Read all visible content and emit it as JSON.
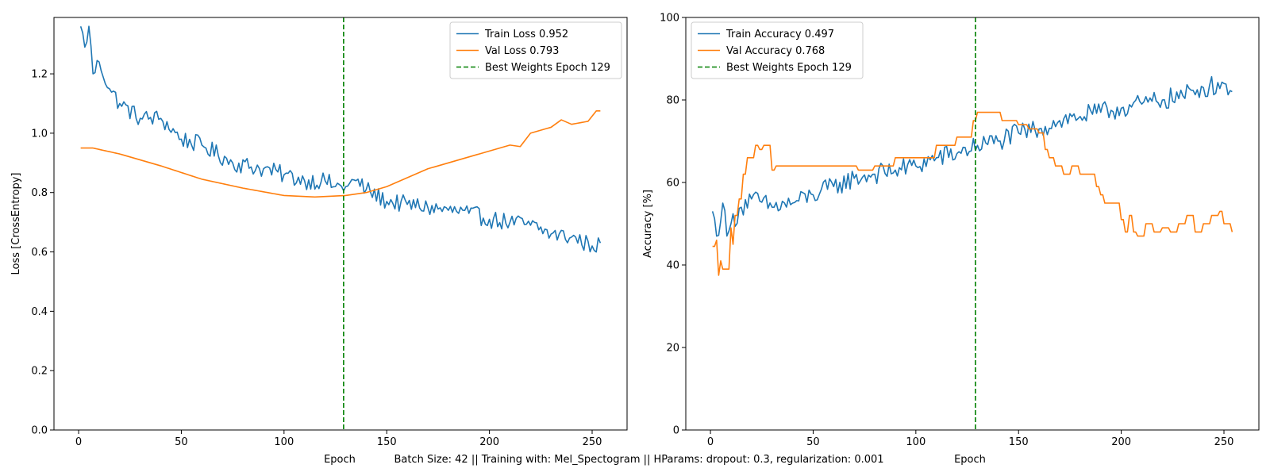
{
  "chart_data": [
    {
      "type": "line",
      "xlabel": "Epoch",
      "ylabel": "Loss [CrossEntropy]",
      "xlim": [
        -12,
        267
      ],
      "ylim": [
        0,
        1.39
      ],
      "xticks": [
        0,
        50,
        100,
        150,
        200,
        250
      ],
      "yticks": [
        0.0,
        0.2,
        0.4,
        0.6,
        0.8,
        1.0,
        1.2
      ],
      "ytick_decimals": 1,
      "legend_position": "upper right",
      "vline": {
        "x": 129,
        "name": "Best Weights Epoch 129",
        "color": "#008000"
      },
      "series": [
        {
          "name": "Train Loss 0.952",
          "color": "#1f77b4",
          "noise": 0.03,
          "anchors": [
            [
              1,
              1.36
            ],
            [
              3,
              1.29
            ],
            [
              5,
              1.36
            ],
            [
              7,
              1.2
            ],
            [
              10,
              1.24
            ],
            [
              15,
              1.15
            ],
            [
              20,
              1.1
            ],
            [
              30,
              1.05
            ],
            [
              40,
              1.05
            ],
            [
              50,
              0.98
            ],
            [
              60,
              0.96
            ],
            [
              75,
              0.9
            ],
            [
              90,
              0.88
            ],
            [
              100,
              0.86
            ],
            [
              110,
              0.84
            ],
            [
              120,
              0.84
            ],
            [
              125,
              0.82
            ],
            [
              130,
              0.82
            ],
            [
              135,
              0.84
            ],
            [
              140,
              0.81
            ],
            [
              150,
              0.77
            ],
            [
              160,
              0.76
            ],
            [
              170,
              0.75
            ],
            [
              180,
              0.74
            ],
            [
              190,
              0.73
            ],
            [
              200,
              0.71
            ],
            [
              210,
              0.7
            ],
            [
              220,
              0.69
            ],
            [
              230,
              0.66
            ],
            [
              240,
              0.65
            ],
            [
              250,
              0.62
            ],
            [
              254,
              0.63
            ]
          ]
        },
        {
          "name": "Val Loss 0.793",
          "color": "#ff7f0e",
          "noise": 0.0,
          "anchors": [
            [
              1,
              0.95
            ],
            [
              7,
              0.95
            ],
            [
              20,
              0.93
            ],
            [
              40,
              0.89
            ],
            [
              60,
              0.845
            ],
            [
              80,
              0.815
            ],
            [
              100,
              0.79
            ],
            [
              115,
              0.785
            ],
            [
              130,
              0.79
            ],
            [
              140,
              0.8
            ],
            [
              150,
              0.82
            ],
            [
              160,
              0.85
            ],
            [
              170,
              0.88
            ],
            [
              180,
              0.9
            ],
            [
              190,
              0.92
            ],
            [
              200,
              0.94
            ],
            [
              210,
              0.96
            ],
            [
              215,
              0.955
            ],
            [
              220,
              1.0
            ],
            [
              230,
              1.02
            ],
            [
              235,
              1.045
            ],
            [
              240,
              1.03
            ],
            [
              248,
              1.04
            ],
            [
              252,
              1.075
            ],
            [
              254,
              1.075
            ]
          ]
        }
      ]
    },
    {
      "type": "line",
      "xlabel": "Epoch",
      "ylabel": "Accuracy [%]",
      "xlim": [
        -12,
        267
      ],
      "ylim": [
        0,
        100
      ],
      "xticks": [
        0,
        50,
        100,
        150,
        200,
        250
      ],
      "yticks": [
        0,
        20,
        40,
        60,
        80,
        100
      ],
      "ytick_decimals": 0,
      "legend_position": "upper left",
      "vline": {
        "x": 129,
        "name": "Best Weights Epoch 129",
        "color": "#008000"
      },
      "series": [
        {
          "name": "Train Accuracy 0.497",
          "color": "#1f77b4",
          "noise": 2.5,
          "anchors": [
            [
              1,
              53
            ],
            [
              3,
              47
            ],
            [
              6,
              55
            ],
            [
              8,
              47
            ],
            [
              10,
              50
            ],
            [
              15,
              54
            ],
            [
              20,
              56
            ],
            [
              30,
              54
            ],
            [
              40,
              55
            ],
            [
              50,
              57
            ],
            [
              60,
              59
            ],
            [
              70,
              61
            ],
            [
              80,
              62
            ],
            [
              90,
              63
            ],
            [
              100,
              64
            ],
            [
              110,
              66
            ],
            [
              120,
              67
            ],
            [
              130,
              69
            ],
            [
              140,
              70
            ],
            [
              150,
              72
            ],
            [
              160,
              73
            ],
            [
              170,
              75
            ],
            [
              180,
              76
            ],
            [
              190,
              77
            ],
            [
              200,
              78
            ],
            [
              210,
              79
            ],
            [
              220,
              80
            ],
            [
              230,
              81
            ],
            [
              240,
              83
            ],
            [
              250,
              84
            ],
            [
              254,
              82
            ]
          ]
        },
        {
          "name": "Val Accuracy 0.768",
          "color": "#ff7f0e",
          "noise": 0.0,
          "steps": true,
          "anchors": [
            [
              1,
              44.5
            ],
            [
              3,
              46
            ],
            [
              4,
              37.5
            ],
            [
              5,
              41
            ],
            [
              6,
              39
            ],
            [
              8,
              39
            ],
            [
              10,
              49
            ],
            [
              11,
              45
            ],
            [
              12,
              52
            ],
            [
              14,
              56
            ],
            [
              16,
              62
            ],
            [
              18,
              66
            ],
            [
              20,
              66
            ],
            [
              22,
              69
            ],
            [
              24,
              68
            ],
            [
              26,
              69
            ],
            [
              28,
              69
            ],
            [
              30,
              63
            ],
            [
              32,
              64
            ],
            [
              70,
              64
            ],
            [
              72,
              63
            ],
            [
              78,
              63
            ],
            [
              80,
              64
            ],
            [
              88,
              64
            ],
            [
              90,
              66
            ],
            [
              108,
              66
            ],
            [
              110,
              69
            ],
            [
              118,
              69
            ],
            [
              120,
              71
            ],
            [
              126,
              71
            ],
            [
              128,
              75
            ],
            [
              130,
              77
            ],
            [
              140,
              77
            ],
            [
              142,
              75
            ],
            [
              150,
              74
            ],
            [
              155,
              73
            ],
            [
              160,
              72
            ],
            [
              163,
              68
            ],
            [
              165,
              66
            ],
            [
              168,
              64
            ],
            [
              172,
              62
            ],
            [
              176,
              64
            ],
            [
              180,
              62
            ],
            [
              184,
              62
            ],
            [
              188,
              59
            ],
            [
              190,
              57
            ],
            [
              192,
              55
            ],
            [
              196,
              55
            ],
            [
              200,
              51
            ],
            [
              202,
              48
            ],
            [
              204,
              52
            ],
            [
              206,
              48
            ],
            [
              208,
              47
            ],
            [
              212,
              50
            ],
            [
              216,
              48
            ],
            [
              220,
              49
            ],
            [
              224,
              48
            ],
            [
              228,
              50
            ],
            [
              232,
              52
            ],
            [
              236,
              48
            ],
            [
              240,
              50
            ],
            [
              244,
              52
            ],
            [
              248,
              53
            ],
            [
              250,
              50
            ],
            [
              252,
              50
            ],
            [
              254,
              48
            ]
          ]
        }
      ]
    }
  ],
  "footer": {
    "xlabel_left": "Epoch",
    "caption": "Batch Size: 42 || Training with: Mel_Spectogram || HParams: dropout: 0.3, regularization: 0.001",
    "xlabel_right": "Epoch"
  }
}
